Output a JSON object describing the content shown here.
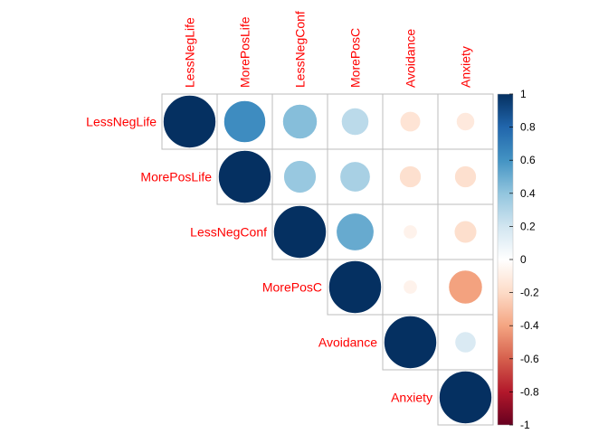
{
  "chart_data": {
    "type": "heatmap",
    "variables": [
      "LessNegLife",
      "MorePosLife",
      "LessNegConf",
      "MorePosC",
      "Avoidance",
      "Anxiety"
    ],
    "matrix": [
      [
        1.0,
        0.63,
        0.43,
        0.27,
        -0.15,
        -0.12
      ],
      [
        0.63,
        1.0,
        0.38,
        0.33,
        -0.17,
        -0.17
      ],
      [
        0.43,
        0.38,
        1.0,
        0.51,
        -0.07,
        -0.18
      ],
      [
        0.27,
        0.33,
        0.51,
        1.0,
        -0.07,
        -0.41
      ],
      [
        -0.15,
        -0.17,
        -0.07,
        -0.07,
        1.0,
        0.16
      ],
      [
        -0.12,
        -0.17,
        -0.18,
        -0.41,
        0.16,
        1.0
      ]
    ],
    "show": "upper",
    "glyph": "circle",
    "color_scale": {
      "min": -1,
      "max": 1,
      "stops": [
        "#67001F",
        "#B2182B",
        "#D6604D",
        "#F4A582",
        "#FDDBC7",
        "#FFFFFF",
        "#D1E5F0",
        "#92C5DE",
        "#4393C3",
        "#2166AC",
        "#053061"
      ]
    },
    "colorbar_ticks": [
      "1",
      "0.8",
      "0.6",
      "0.4",
      "0.2",
      "0",
      "-0.2",
      "-0.4",
      "-0.6",
      "-0.8",
      "-1"
    ],
    "label_color": "#ff0000"
  }
}
